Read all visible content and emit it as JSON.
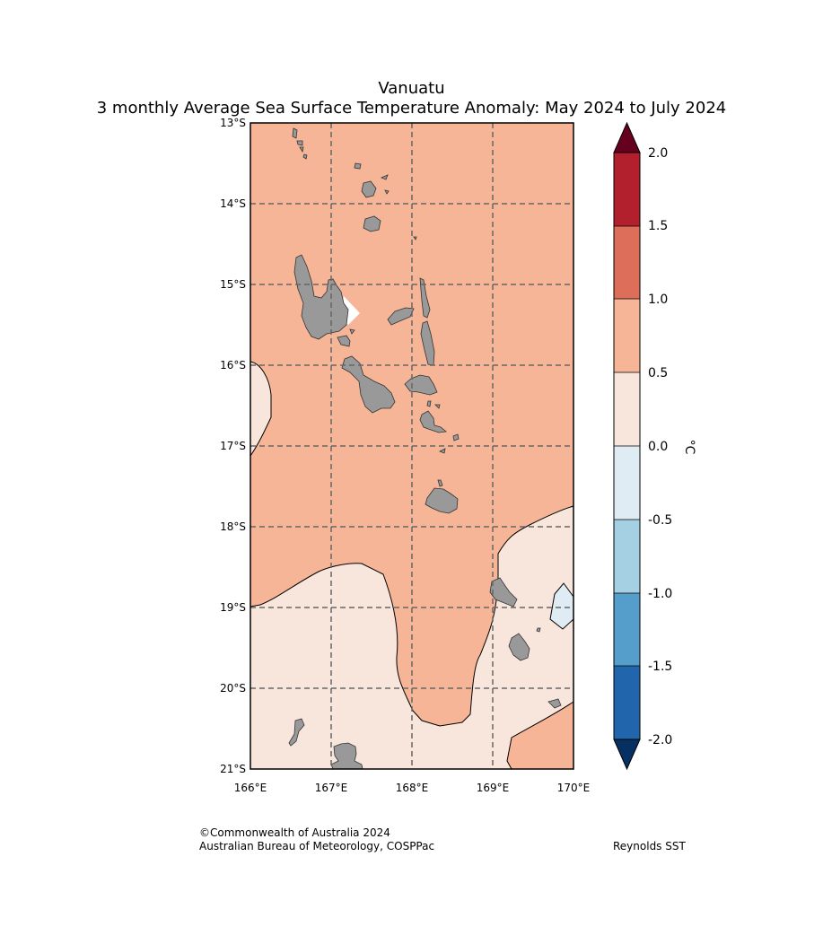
{
  "title": "Vanuatu",
  "subtitle": "3 monthly Average Sea Surface Temperature Anomaly: May 2024 to July 2024",
  "lat_labels": [
    "13°S",
    "14°S",
    "15°S",
    "16°S",
    "17°S",
    "18°S",
    "19°S",
    "20°S",
    "21°S"
  ],
  "lon_labels": [
    "166°E",
    "167°E",
    "168°E",
    "169°E",
    "170°E"
  ],
  "colorbar": {
    "unit": "°C",
    "tick_labels": [
      "2.0",
      "1.5",
      "1.0",
      "0.5",
      "0.0",
      "-0.5",
      "-1.0",
      "-1.5",
      "-2.0"
    ],
    "bins": [
      {
        "range": "over 2.0",
        "color": "#67001f"
      },
      {
        "range": "1.5 to 2.0",
        "color": "#b2202e"
      },
      {
        "range": "1.0 to 1.5",
        "color": "#dd6e5a"
      },
      {
        "range": "0.5 to 1.0",
        "color": "#f5b596"
      },
      {
        "range": "0.0 to 0.5",
        "color": "#f8e6dc"
      },
      {
        "range": "-0.5 to 0.0",
        "color": "#e0ecf3"
      },
      {
        "range": "-1.0 to -0.5",
        "color": "#a5cfe3"
      },
      {
        "range": "-1.5 to -1.0",
        "color": "#559ecb"
      },
      {
        "range": "-2.0 to -1.5",
        "color": "#2166ac"
      },
      {
        "range": "under -2.0",
        "color": "#053061"
      }
    ]
  },
  "map": {
    "extent": {
      "lon": [
        166,
        170
      ],
      "lat": [
        -21,
        -13
      ]
    },
    "land_color": "#999999"
  },
  "credits": {
    "line1": "©Commonwealth of Australia 2024",
    "line2": "Australian Bureau of Meteorology, COSPPac",
    "source": "Reynolds SST"
  }
}
